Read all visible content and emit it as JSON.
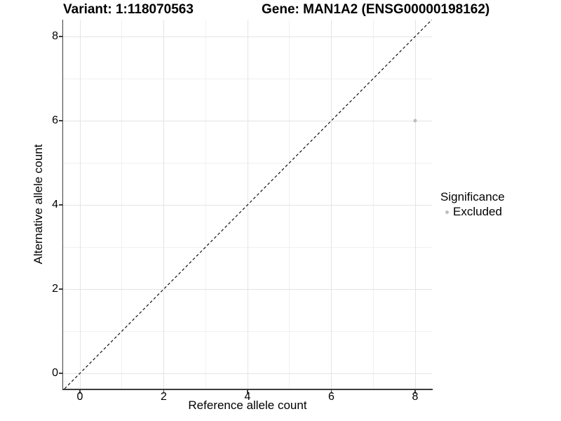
{
  "chart_data": {
    "type": "scatter",
    "titles": {
      "left": "Variant: 1:118070563",
      "right": "Gene: MAN1A2 (ENSG00000198162)"
    },
    "xlabel": "Reference allele count",
    "ylabel": "Alternative allele count",
    "xlim": [
      0,
      8
    ],
    "ylim": [
      0,
      8
    ],
    "x_ticks": [
      0,
      2,
      4,
      6,
      8
    ],
    "y_ticks": [
      0,
      2,
      4,
      6,
      8
    ],
    "x_minor_ticks": [
      1,
      3,
      5,
      7
    ],
    "y_minor_ticks": [
      1,
      3,
      5,
      7
    ],
    "grid": "major+minor",
    "legend": {
      "title": "Significance",
      "position": "right",
      "entries": [
        {
          "label": "Excluded",
          "color": "#bdbdbd"
        }
      ]
    },
    "series": [
      {
        "name": "Excluded",
        "color": "#bdbdbd",
        "points": [
          [
            8,
            6
          ]
        ]
      }
    ],
    "reference_line": {
      "kind": "identity",
      "equation": "y = x",
      "style": "dashed",
      "color": "#111111"
    }
  }
}
